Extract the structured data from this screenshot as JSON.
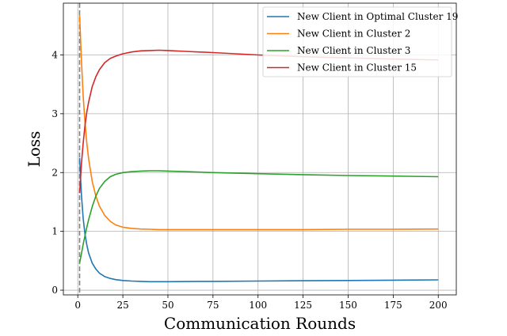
{
  "chart_data": {
    "type": "line",
    "title": "",
    "xlabel": "Communication Rounds",
    "ylabel": "Loss",
    "xlim": [
      -8,
      210
    ],
    "ylim": [
      -0.08,
      4.88
    ],
    "xticks": [
      0,
      25,
      50,
      75,
      100,
      125,
      150,
      175,
      200
    ],
    "yticks": [
      0,
      1,
      2,
      3,
      4
    ],
    "grid": true,
    "legend": "top-right",
    "vline": {
      "x": 1,
      "style": "dashed",
      "color": "#808080"
    },
    "series": [
      {
        "name": "New Client in Optimal Cluster 19",
        "color": "#1f77b4",
        "x": [
          1,
          2,
          3,
          4,
          5,
          6,
          8,
          10,
          12,
          15,
          18,
          21,
          25,
          30,
          35,
          40,
          45,
          50,
          60,
          75,
          100,
          125,
          150,
          175,
          200
        ],
        "y": [
          2.25,
          1.62,
          1.22,
          0.95,
          0.77,
          0.63,
          0.46,
          0.36,
          0.29,
          0.23,
          0.2,
          0.18,
          0.165,
          0.155,
          0.15,
          0.145,
          0.145,
          0.145,
          0.147,
          0.15,
          0.155,
          0.16,
          0.165,
          0.17,
          0.175
        ]
      },
      {
        "name": "New Client in Cluster 2",
        "color": "#ff7f0e",
        "x": [
          1,
          2,
          3,
          4,
          5,
          6,
          8,
          10,
          12,
          15,
          18,
          21,
          25,
          30,
          35,
          40,
          45,
          50,
          60,
          75,
          100,
          125,
          150,
          175,
          200
        ],
        "y": [
          4.68,
          3.9,
          3.3,
          2.85,
          2.5,
          2.23,
          1.85,
          1.6,
          1.43,
          1.27,
          1.17,
          1.11,
          1.07,
          1.05,
          1.04,
          1.035,
          1.03,
          1.03,
          1.03,
          1.03,
          1.03,
          1.03,
          1.035,
          1.035,
          1.04
        ]
      },
      {
        "name": "New Client in Cluster 3",
        "color": "#2ca02c",
        "x": [
          1,
          2,
          3,
          4,
          5,
          6,
          8,
          10,
          12,
          15,
          18,
          21,
          25,
          30,
          35,
          40,
          45,
          50,
          60,
          75,
          100,
          125,
          150,
          175,
          200
        ],
        "y": [
          0.46,
          0.62,
          0.78,
          0.93,
          1.07,
          1.2,
          1.42,
          1.6,
          1.73,
          1.85,
          1.93,
          1.97,
          2.0,
          2.015,
          2.025,
          2.03,
          2.03,
          2.025,
          2.015,
          2.0,
          1.98,
          1.965,
          1.95,
          1.94,
          1.93
        ]
      },
      {
        "name": "New Client in Cluster 15",
        "color": "#d62728",
        "x": [
          1,
          2,
          3,
          4,
          5,
          6,
          8,
          10,
          12,
          15,
          18,
          21,
          25,
          30,
          35,
          40,
          45,
          50,
          60,
          75,
          100,
          125,
          150,
          175,
          200
        ],
        "y": [
          1.65,
          2.15,
          2.5,
          2.8,
          3.03,
          3.2,
          3.46,
          3.63,
          3.75,
          3.87,
          3.94,
          3.98,
          4.02,
          4.05,
          4.07,
          4.075,
          4.08,
          4.075,
          4.06,
          4.04,
          4.0,
          3.97,
          3.95,
          3.93,
          3.915
        ]
      }
    ]
  }
}
